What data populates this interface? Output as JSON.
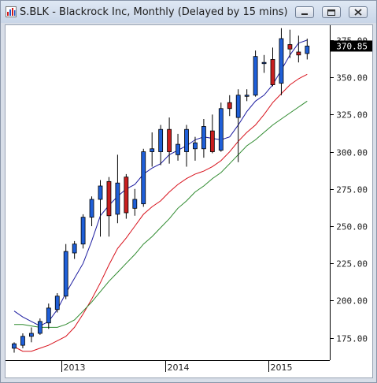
{
  "window": {
    "title": "S.BLK - Blackrock Inc, Monthly (Delayed by 15 mins)",
    "icon": "chart-app-icon",
    "buttons": {
      "minimize": "minimize-icon",
      "restore": "restore-icon",
      "close": "close-icon"
    }
  },
  "chart_data": {
    "type": "candlestick",
    "symbol": "S.BLK",
    "last_price_label": "370.85",
    "ylim": [
      160,
      385
    ],
    "y_ticks": [
      "175.00",
      "200.00",
      "225.00",
      "250.00",
      "275.00",
      "300.00",
      "325.00",
      "350.00",
      "375.00"
    ],
    "y_tick_values": [
      175,
      200,
      225,
      250,
      275,
      300,
      325,
      350,
      375
    ],
    "x_labels": [
      {
        "text": "2013",
        "index": 6
      },
      {
        "text": "2014",
        "index": 18
      },
      {
        "text": "2015",
        "index": 30
      }
    ],
    "up_color": "#1f5fd8",
    "down_color": "#c81e1e",
    "candles": [
      {
        "o": 168,
        "h": 172,
        "l": 165,
        "c": 171
      },
      {
        "o": 170,
        "h": 178,
        "l": 168,
        "c": 176
      },
      {
        "o": 176,
        "h": 182,
        "l": 172,
        "c": 178
      },
      {
        "o": 178,
        "h": 188,
        "l": 177,
        "c": 186
      },
      {
        "o": 185,
        "h": 198,
        "l": 181,
        "c": 195
      },
      {
        "o": 194,
        "h": 205,
        "l": 192,
        "c": 203
      },
      {
        "o": 203,
        "h": 238,
        "l": 201,
        "c": 233
      },
      {
        "o": 232,
        "h": 240,
        "l": 228,
        "c": 238
      },
      {
        "o": 238,
        "h": 258,
        "l": 235,
        "c": 256
      },
      {
        "o": 256,
        "h": 270,
        "l": 250,
        "c": 268
      },
      {
        "o": 268,
        "h": 281,
        "l": 243,
        "c": 277
      },
      {
        "o": 280,
        "h": 283,
        "l": 243,
        "c": 257
      },
      {
        "o": 258,
        "h": 298,
        "l": 252,
        "c": 279
      },
      {
        "o": 283,
        "h": 285,
        "l": 255,
        "c": 259
      },
      {
        "o": 262,
        "h": 275,
        "l": 257,
        "c": 268
      },
      {
        "o": 265,
        "h": 302,
        "l": 263,
        "c": 300
      },
      {
        "o": 300,
        "h": 313,
        "l": 290,
        "c": 302
      },
      {
        "o": 300,
        "h": 318,
        "l": 291,
        "c": 315
      },
      {
        "o": 315,
        "h": 323,
        "l": 292,
        "c": 300
      },
      {
        "o": 298,
        "h": 312,
        "l": 294,
        "c": 305
      },
      {
        "o": 300,
        "h": 318,
        "l": 290,
        "c": 315
      },
      {
        "o": 302,
        "h": 310,
        "l": 294,
        "c": 306
      },
      {
        "o": 302,
        "h": 322,
        "l": 296,
        "c": 317
      },
      {
        "o": 314,
        "h": 325,
        "l": 299,
        "c": 300
      },
      {
        "o": 301,
        "h": 333,
        "l": 300,
        "c": 329
      },
      {
        "o": 333,
        "h": 338,
        "l": 324,
        "c": 329
      },
      {
        "o": 323,
        "h": 342,
        "l": 293,
        "c": 338
      },
      {
        "o": 338,
        "h": 342,
        "l": 334,
        "c": 338
      },
      {
        "o": 338,
        "h": 368,
        "l": 337,
        "c": 364
      },
      {
        "o": 360,
        "h": 365,
        "l": 353,
        "c": 360
      },
      {
        "o": 362,
        "h": 370,
        "l": 344,
        "c": 345
      },
      {
        "o": 346,
        "h": 383,
        "l": 338,
        "c": 376
      },
      {
        "o": 372,
        "h": 382,
        "l": 363,
        "c": 369
      },
      {
        "o": 367,
        "h": 378,
        "l": 360,
        "c": 365
      },
      {
        "o": 366,
        "h": 376,
        "l": 362,
        "c": 371
      }
    ],
    "moving_averages": [
      {
        "color": "#1c1ca0",
        "values": [
          193,
          189,
          186,
          183,
          186,
          194,
          205,
          215,
          225,
          240,
          257,
          264,
          270,
          275,
          278,
          285,
          289,
          292,
          298,
          301,
          304,
          308,
          310,
          309,
          308,
          310,
          318,
          327,
          334,
          338,
          345,
          355,
          365,
          373,
          375
        ]
      },
      {
        "color": "#d8121c",
        "values": [
          169,
          166,
          166,
          168,
          170,
          173,
          176,
          182,
          191,
          201,
          212,
          224,
          235,
          242,
          250,
          258,
          263,
          267,
          273,
          278,
          282,
          285,
          287,
          290,
          294,
          300,
          307,
          313,
          318,
          325,
          333,
          339,
          345,
          349,
          352
        ]
      },
      {
        "color": "#2e8a2e",
        "values": [
          184,
          184,
          183,
          182,
          182,
          182,
          184,
          187,
          193,
          199,
          206,
          213,
          219,
          225,
          231,
          238,
          243,
          249,
          255,
          262,
          267,
          273,
          277,
          282,
          286,
          292,
          298,
          304,
          308,
          313,
          318,
          322,
          326,
          330,
          334
        ]
      }
    ]
  }
}
